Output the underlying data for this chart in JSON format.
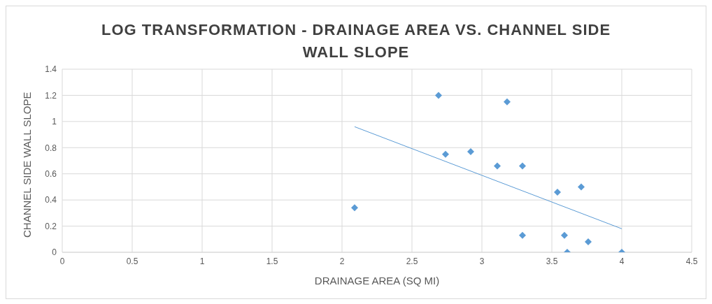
{
  "chart_data": {
    "type": "scatter",
    "title": "LOG TRANSFORMATION - DRAINAGE AREA VS. CHANNEL SIDE WALL SLOPE",
    "xlabel": "DRAINAGE AREA (SQ MI)",
    "ylabel": "CHANNEL SIDE WALL SLOPE",
    "series": [
      {
        "color": "#5b9bd5",
        "marker": "diamond",
        "x": [
          2.69,
          3.18,
          2.74,
          2.92,
          3.11,
          3.29,
          3.54,
          3.71,
          2.09,
          3.29,
          3.59,
          3.61,
          3.76,
          4.0
        ],
        "values": [
          1.2,
          1.15,
          0.75,
          0.77,
          0.66,
          0.66,
          0.46,
          0.5,
          0.34,
          0.13,
          0.13,
          0,
          0.08,
          0
        ]
      },
      {
        "type": "line",
        "color": "#5b9bd5",
        "marker": "none",
        "x": [
          2.09,
          4.0
        ],
        "values": [
          0.96,
          0.18
        ]
      }
    ],
    "xlim": [
      0,
      4.5
    ],
    "xticks": [
      0,
      0.5,
      1,
      1.5,
      2,
      2.5,
      3,
      3.5,
      4,
      4.5
    ],
    "ylim": [
      0,
      1.4
    ],
    "yticks": [
      0,
      0.2,
      0.4,
      0.6,
      0.8,
      1,
      1.2,
      1.4
    ],
    "grid": true
  }
}
